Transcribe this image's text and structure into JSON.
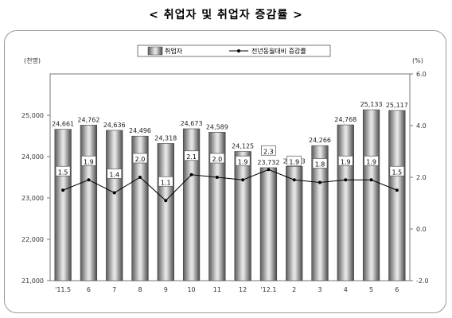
{
  "title": "< 취업자 및 취업자 증감률 >",
  "chart_data": {
    "type": "bar",
    "categories": [
      "'11.5",
      "6",
      "7",
      "8",
      "9",
      "10",
      "11",
      "12",
      "'12.1",
      "2",
      "3",
      "4",
      "5",
      "6"
    ],
    "series": [
      {
        "name": "취업자",
        "kind": "bar",
        "axis": "left",
        "values": [
          24661,
          24762,
          24636,
          24496,
          24318,
          24673,
          24589,
          24125,
          23732,
          23763,
          24266,
          24768,
          25133,
          25117
        ],
        "labels": [
          "24,661",
          "24,762",
          "24,636",
          "24,496",
          "24,318",
          "24,673",
          "24,589",
          "24,125",
          "23,732",
          "23,763",
          "24,266",
          "24,768",
          "25,133",
          "25,117"
        ]
      },
      {
        "name": "전년동월대비 증감률",
        "kind": "line",
        "axis": "right",
        "values": [
          1.5,
          1.9,
          1.4,
          2.0,
          1.1,
          2.1,
          2.0,
          1.9,
          2.3,
          1.9,
          1.8,
          1.9,
          1.9,
          1.5
        ],
        "labels": [
          "1.5",
          "1.9",
          "1.4",
          "2.0",
          "1.1",
          "2.1",
          "2.0",
          "1.9",
          "2.3",
          "1.9",
          "1.8",
          "1.9",
          "1.9",
          "1.5"
        ]
      }
    ],
    "left_axis": {
      "unit": "(천명)",
      "ylim": [
        21000,
        26000
      ],
      "ticks": [
        21000,
        22000,
        23000,
        24000,
        25000
      ],
      "tick_labels": [
        "21,000",
        "22,000",
        "23,000",
        "24,000",
        "25,000"
      ]
    },
    "right_axis": {
      "unit": "(%)",
      "ylim": [
        -2.0,
        6.0
      ],
      "ticks": [
        -2.0,
        0.0,
        2.0,
        4.0,
        6.0
      ],
      "tick_labels": [
        "-2.0",
        "0.0",
        "2.0",
        "4.0",
        "6.0"
      ]
    },
    "legend_position": "top-center",
    "grid": false
  }
}
